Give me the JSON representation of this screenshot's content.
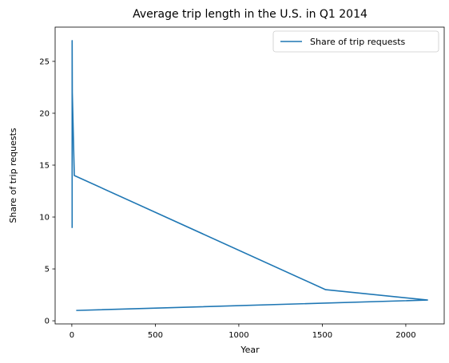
{
  "chart_data": {
    "type": "line",
    "title": "Average trip length in the U.S. in Q1 2014",
    "xlabel": "Year",
    "ylabel": "Share of trip requests",
    "xlim": [
      -100,
      2230
    ],
    "ylim": [
      -0.3,
      28.3
    ],
    "xticks": [
      0,
      500,
      1000,
      1500,
      2000
    ],
    "yticks": [
      0,
      5,
      10,
      15,
      20,
      25
    ],
    "grid": false,
    "legend_position": "top-right",
    "series": [
      {
        "name": "Share of trip requests",
        "color": "#1f77b4",
        "points": [
          {
            "x": 2,
            "y": 9
          },
          {
            "x": 2,
            "y": 27
          },
          {
            "x": 3,
            "y": 22
          },
          {
            "x": 15,
            "y": 14
          },
          {
            "x": 1520,
            "y": 3
          },
          {
            "x": 2130,
            "y": 2
          },
          {
            "x": 30,
            "y": 1
          }
        ]
      }
    ]
  }
}
